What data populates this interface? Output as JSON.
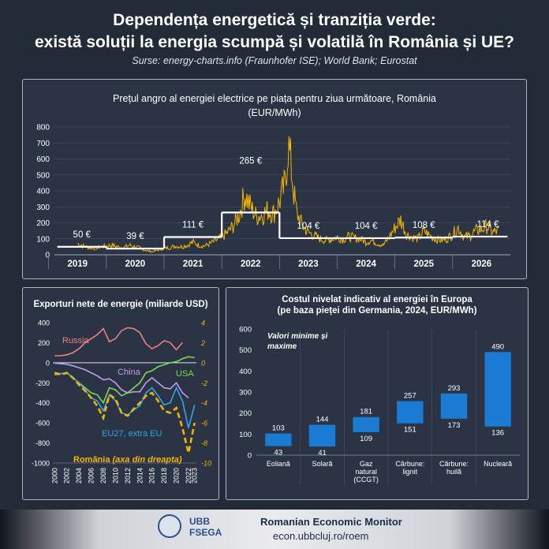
{
  "header": {
    "title_line1": "Dependența energetică și tranziția verde:",
    "title_line2": "există soluții la energia scumpă și volatilă în România și UE?",
    "sources": "Surse: energy-charts.info (Fraunhofer ISE); World Bank; Eurostat"
  },
  "footer": {
    "name": "Romanian Economic Monitor",
    "url": "econ.ubbcluj.ro/roem",
    "logo_text_1": "UBB",
    "logo_text_2": "FSEGA",
    "logo_icon": "ubb-seal-icon"
  },
  "chart_data": [
    {
      "type": "line",
      "title": "Prețul angro al energiei electrice pe piața pentru ziua următoare, România",
      "subtitle": "(EUR/MWh)",
      "ylim": [
        0,
        800
      ],
      "y_ticks": [
        "0",
        "100",
        "200",
        "300",
        "400",
        "500",
        "600",
        "700",
        "800"
      ],
      "x_ticks": [
        "2019",
        "2020",
        "2021",
        "2022",
        "2023",
        "2024",
        "2025",
        "2026"
      ],
      "grid": true,
      "series": [
        {
          "color": "#f5b400",
          "x": [
            2019.0,
            2019.1,
            2019.2,
            2019.3,
            2019.4,
            2019.5,
            2019.6,
            2019.7,
            2019.8,
            2019.9,
            2020.0,
            2020.1,
            2020.2,
            2020.3,
            2020.4,
            2020.5,
            2020.6,
            2020.7,
            2020.8,
            2020.9,
            2021.0,
            2021.1,
            2021.2,
            2021.3,
            2021.4,
            2021.5,
            2021.6,
            2021.7,
            2021.8,
            2021.9,
            2022.0,
            2022.1,
            2022.2,
            2022.3,
            2022.4,
            2022.5,
            2022.6,
            2022.65,
            2022.7,
            2022.75,
            2022.8,
            2022.9,
            2023.0,
            2023.1,
            2023.2,
            2023.3,
            2023.4,
            2023.5,
            2023.6,
            2023.7,
            2023.8,
            2023.9,
            2024.0,
            2024.1,
            2024.2,
            2024.3,
            2024.4,
            2024.5,
            2024.6,
            2024.7,
            2024.8,
            2024.9,
            2025.0,
            2025.1,
            2025.2,
            2025.3,
            2025.4,
            2025.5,
            2025.6,
            2025.7,
            2025.8,
            2025.9,
            2026.0,
            2026.1,
            2026.2,
            2026.3
          ],
          "values": [
            70,
            55,
            45,
            40,
            50,
            55,
            60,
            50,
            45,
            60,
            50,
            40,
            25,
            20,
            30,
            40,
            45,
            55,
            50,
            60,
            80,
            60,
            55,
            70,
            90,
            110,
            140,
            180,
            250,
            380,
            300,
            240,
            250,
            280,
            260,
            330,
            450,
            700,
            560,
            380,
            260,
            180,
            140,
            120,
            100,
            90,
            100,
            110,
            95,
            115,
            105,
            100,
            80,
            90,
            70,
            60,
            110,
            170,
            220,
            130,
            110,
            100,
            150,
            120,
            100,
            90,
            100,
            130,
            170,
            110,
            120,
            150,
            160,
            180,
            140,
            150
          ]
        }
      ],
      "step": {
        "color": "#ffffff",
        "periods": [
          {
            "start": 2018.65,
            "end": 2019.5,
            "value": 50,
            "label": "50 €"
          },
          {
            "start": 2019.5,
            "end": 2020.5,
            "value": 39,
            "label": "39 €"
          },
          {
            "start": 2020.5,
            "end": 2021.5,
            "value": 111,
            "label": "111 €"
          },
          {
            "start": 2021.5,
            "end": 2022.5,
            "value": 265,
            "label": "265 €"
          },
          {
            "start": 2022.5,
            "end": 2023.5,
            "value": 104,
            "label": "104 €"
          },
          {
            "start": 2023.5,
            "end": 2024.5,
            "value": 104,
            "label": "104 €"
          },
          {
            "start": 2024.5,
            "end": 2025.5,
            "value": 108,
            "label": "108 €"
          },
          {
            "start": 2025.5,
            "end": 2026.45,
            "value": 114,
            "label": "114 €"
          }
        ]
      }
    },
    {
      "type": "line",
      "title": "Exporturi nete de energie (miliarde USD)",
      "x": [
        2000,
        2001,
        2002,
        2003,
        2004,
        2005,
        2006,
        2007,
        2008,
        2009,
        2010,
        2011,
        2012,
        2013,
        2014,
        2015,
        2016,
        2017,
        2018,
        2019,
        2020,
        2021,
        2022,
        2023
      ],
      "x_ticks": [
        "2000",
        "2002",
        "2004",
        "2006",
        "2008",
        "2010",
        "2012",
        "2014",
        "2016",
        "2018",
        "2020",
        "2022",
        "2023"
      ],
      "ylim": [
        -1000,
        400
      ],
      "y_ticks": [
        "-1000",
        "-800",
        "-600",
        "-400",
        "-200",
        "0",
        "200",
        "400"
      ],
      "y2lim": [
        -10,
        4
      ],
      "y2_ticks": [
        "-10",
        "-8",
        "-6",
        "-4",
        "-2",
        "0",
        "2",
        "4"
      ],
      "series": [
        {
          "name": "Russia",
          "color": "#f08080",
          "axis": "left",
          "values": [
            70,
            70,
            80,
            100,
            140,
            200,
            240,
            280,
            340,
            210,
            240,
            320,
            350,
            340,
            300,
            190,
            140,
            170,
            220,
            200,
            130,
            200,
            null,
            null
          ]
        },
        {
          "name": "China",
          "color": "#c39bf0",
          "axis": "left",
          "values": [
            -5,
            -10,
            -15,
            -30,
            -50,
            -70,
            -100,
            -130,
            -170,
            -160,
            -200,
            -270,
            -300,
            -290,
            -290,
            -200,
            -150,
            -200,
            -250,
            -260,
            -200,
            -300,
            -350,
            null
          ]
        },
        {
          "name": "USA",
          "color": "#7ed957",
          "axis": "left",
          "values": [
            -120,
            -110,
            -100,
            -150,
            -200,
            -250,
            -300,
            -320,
            -400,
            -250,
            -270,
            -330,
            -300,
            -250,
            -200,
            -100,
            -80,
            -40,
            -20,
            0,
            10,
            40,
            60,
            50
          ]
        },
        {
          "name": "EU27, extra EU",
          "color": "#2ea8e8",
          "axis": "left",
          "values": [
            -100,
            -110,
            -100,
            -150,
            -200,
            -270,
            -350,
            -380,
            -480,
            -320,
            -380,
            -500,
            -520,
            -470,
            -430,
            -300,
            -250,
            -330,
            -420,
            -400,
            -250,
            -380,
            -650,
            -420
          ]
        },
        {
          "name": "România (axa din dreapta)",
          "color": "#f5b400",
          "dashed": true,
          "axis": "right",
          "values": [
            -1.0,
            -1.2,
            -1.0,
            -1.5,
            -2.2,
            -2.8,
            -3.5,
            -4.3,
            -5.5,
            -3.2,
            -3.6,
            -5.0,
            -5.3,
            -4.6,
            -4.0,
            -3.3,
            -3.0,
            -3.8,
            -4.8,
            -5.0,
            -4.5,
            -6.5,
            -9.0,
            -6.0
          ]
        }
      ]
    },
    {
      "type": "bar",
      "title": "Costul nivelat indicativ al energiei în Europa",
      "subtitle": "(pe baza pieței din Germania, 2024, EUR/MWh)",
      "annotation": "Valori minime și maxime",
      "ylim": [
        0,
        600
      ],
      "y_ticks": [
        "0",
        "100",
        "200",
        "300",
        "400",
        "500",
        "600"
      ],
      "categories": [
        "Eoliană",
        "Solară",
        "Gaz natural (CCGT)",
        "Cărbune: lignit",
        "Cărbune: huilă",
        "Nucleară"
      ],
      "min": [
        43,
        41,
        109,
        151,
        173,
        136
      ],
      "max": [
        103,
        144,
        181,
        257,
        293,
        490
      ],
      "min_labels": [
        "43",
        "41",
        "109",
        "151",
        "173",
        "136"
      ],
      "max_labels": [
        "103",
        "144",
        "181",
        "257",
        "293",
        "490"
      ],
      "color": "#1b7ad1"
    }
  ]
}
